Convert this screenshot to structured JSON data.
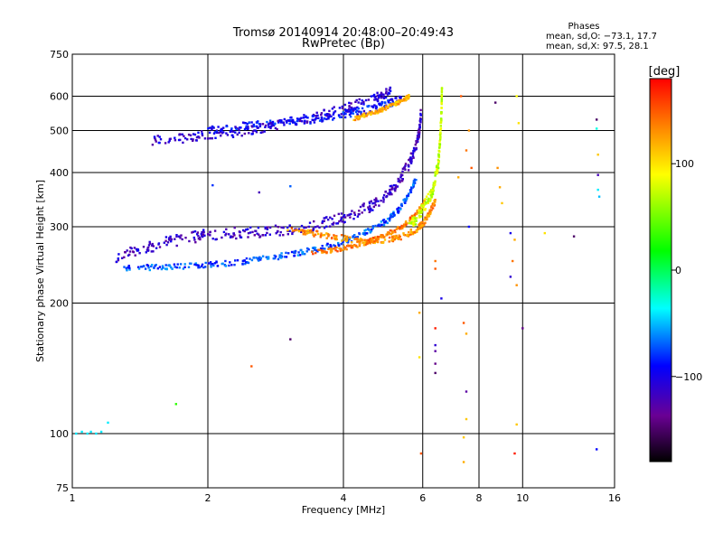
{
  "header": {
    "title": "Tromsø 20140914 20:48:00–20:49:43",
    "subtitle": "RwPretec (Bp)"
  },
  "stats": {
    "heading": "Phases",
    "line_o": "mean, sd,O: −73.1, 17.7",
    "line_x": "mean, sd,X:  97.5, 28.1"
  },
  "colorbar": {
    "unit": "[deg]",
    "range": [
      -180,
      180
    ],
    "ticks": [
      {
        "value": 100,
        "label": "100"
      },
      {
        "value": 0,
        "label": "0"
      },
      {
        "value": -100,
        "label": "−100"
      }
    ]
  },
  "chart_data": {
    "type": "scatter",
    "xlabel": "Frequency [MHz]",
    "ylabel": "Stationary phase Virtual Height [km]",
    "xscale": "log",
    "yscale": "log",
    "xlim": [
      1,
      16
    ],
    "ylim": [
      75,
      750
    ],
    "xticks": [
      {
        "value": 1,
        "label": "1"
      },
      {
        "value": 2,
        "label": "2"
      },
      {
        "value": 4,
        "label": "4"
      },
      {
        "value": 6,
        "label": "6"
      },
      {
        "value": 8,
        "label": "8"
      },
      {
        "value": 10,
        "label": "10"
      },
      {
        "value": 16,
        "label": "16"
      }
    ],
    "yticks": [
      {
        "value": 75,
        "label": "75"
      },
      {
        "value": 100,
        "label": "100"
      },
      {
        "value": 200,
        "label": "200"
      },
      {
        "value": 300,
        "label": "300"
      },
      {
        "value": 400,
        "label": "400"
      },
      {
        "value": 500,
        "label": "500"
      },
      {
        "value": 600,
        "label": "600"
      },
      {
        "value": 750,
        "label": "750"
      }
    ],
    "grid": true,
    "color_dimension": "phase [deg]",
    "traces": [
      {
        "f": [
          1.5,
          1.75,
          2.0,
          2.3,
          2.6,
          3.0,
          3.5,
          4.0,
          4.4,
          4.8,
          5.1
        ],
        "h": [
          475,
          480,
          488,
          495,
          505,
          520,
          540,
          560,
          580,
          600,
          615
        ],
        "phase": -110,
        "spread": 0.025
      },
      {
        "f": [
          2.0,
          2.3,
          2.6,
          3.0,
          3.4,
          3.8,
          4.2,
          4.6,
          5.0,
          5.4
        ],
        "h": [
          500,
          510,
          518,
          525,
          530,
          540,
          550,
          560,
          575,
          590
        ],
        "phase": -90,
        "spread": 0.02
      },
      {
        "f": [
          4.2,
          4.5,
          4.8,
          5.1,
          5.4,
          5.6
        ],
        "h": [
          530,
          545,
          555,
          570,
          585,
          600
        ],
        "phase": 120,
        "spread": 0.01
      },
      {
        "f": [
          1.25,
          1.4,
          1.6,
          1.8,
          2.0,
          2.3,
          2.6,
          3.0,
          3.4,
          3.8,
          4.2,
          4.6,
          5.0,
          5.3,
          5.6,
          5.8,
          5.9,
          5.95
        ],
        "h": [
          255,
          265,
          275,
          282,
          288,
          290,
          292,
          295,
          300,
          310,
          320,
          335,
          355,
          380,
          420,
          460,
          500,
          550
        ],
        "phase": -115,
        "spread": 0.03
      },
      {
        "f": [
          1.3,
          1.5,
          1.7,
          2.0,
          2.3,
          2.6,
          3.0,
          3.4,
          3.8,
          4.2,
          4.6,
          5.0,
          5.3,
          5.6,
          5.8
        ],
        "h": [
          240,
          242,
          243,
          245,
          248,
          252,
          258,
          265,
          272,
          282,
          295,
          310,
          328,
          355,
          390
        ],
        "phase": -75,
        "spread": 0.015
      },
      {
        "f": [
          3.0,
          3.4,
          3.8,
          4.2,
          4.6,
          5.0,
          5.4,
          5.8,
          6.0,
          6.2,
          6.4
        ],
        "h": [
          295,
          290,
          285,
          280,
          278,
          280,
          285,
          295,
          305,
          320,
          345
        ],
        "phase": 130,
        "spread": 0.015
      },
      {
        "f": [
          3.4,
          3.8,
          4.2,
          4.6,
          5.0,
          5.4,
          5.8,
          6.1
        ],
        "h": [
          262,
          265,
          270,
          278,
          288,
          300,
          320,
          345
        ],
        "phase": 140,
        "spread": 0.012
      },
      {
        "f": [
          5.6,
          5.9,
          6.1,
          6.3,
          6.4,
          6.5,
          6.55,
          6.6,
          6.62
        ],
        "h": [
          300,
          320,
          340,
          360,
          390,
          420,
          470,
          540,
          620
        ],
        "phase": 75,
        "spread": 0.03
      }
    ],
    "isolated_points": [
      {
        "f": 1.02,
        "h": 100,
        "phase": -40
      },
      {
        "f": 1.05,
        "h": 101,
        "phase": -40
      },
      {
        "f": 1.08,
        "h": 100,
        "phase": -40
      },
      {
        "f": 1.1,
        "h": 101,
        "phase": -40
      },
      {
        "f": 1.13,
        "h": 100,
        "phase": -40
      },
      {
        "f": 1.16,
        "h": 101,
        "phase": -40
      },
      {
        "f": 1.2,
        "h": 106,
        "phase": -40
      },
      {
        "f": 1.7,
        "h": 117,
        "phase": 30
      },
      {
        "f": 2.5,
        "h": 143,
        "phase": 150
      },
      {
        "f": 3.05,
        "h": 165,
        "phase": -150
      },
      {
        "f": 2.05,
        "h": 374,
        "phase": -80
      },
      {
        "f": 2.6,
        "h": 360,
        "phase": -120
      },
      {
        "f": 3.05,
        "h": 372,
        "phase": -70
      },
      {
        "f": 5.9,
        "h": 190,
        "phase": 120
      },
      {
        "f": 5.9,
        "h": 150,
        "phase": 100
      },
      {
        "f": 5.95,
        "h": 90,
        "phase": 150
      },
      {
        "f": 6.4,
        "h": 175,
        "phase": 170
      },
      {
        "f": 6.4,
        "h": 160,
        "phase": -110
      },
      {
        "f": 6.4,
        "h": 155,
        "phase": -130
      },
      {
        "f": 6.4,
        "h": 145,
        "phase": -140
      },
      {
        "f": 6.4,
        "h": 138,
        "phase": -150
      },
      {
        "f": 6.6,
        "h": 205,
        "phase": -100
      },
      {
        "f": 6.4,
        "h": 250,
        "phase": 140
      },
      {
        "f": 6.4,
        "h": 240,
        "phase": 150
      },
      {
        "f": 7.4,
        "h": 180,
        "phase": 150
      },
      {
        "f": 7.5,
        "h": 170,
        "phase": 120
      },
      {
        "f": 7.5,
        "h": 125,
        "phase": -130
      },
      {
        "f": 7.5,
        "h": 108,
        "phase": 110
      },
      {
        "f": 7.4,
        "h": 98,
        "phase": 110
      },
      {
        "f": 7.4,
        "h": 86,
        "phase": 120
      },
      {
        "f": 7.6,
        "h": 300,
        "phase": -90
      },
      {
        "f": 7.2,
        "h": 390,
        "phase": 120
      },
      {
        "f": 7.3,
        "h": 600,
        "phase": 150
      },
      {
        "f": 7.6,
        "h": 500,
        "phase": 130
      },
      {
        "f": 7.5,
        "h": 450,
        "phase": 140
      },
      {
        "f": 7.7,
        "h": 410,
        "phase": 150
      },
      {
        "f": 8.7,
        "h": 580,
        "phase": -150
      },
      {
        "f": 8.8,
        "h": 410,
        "phase": 130
      },
      {
        "f": 8.9,
        "h": 370,
        "phase": 120
      },
      {
        "f": 9.0,
        "h": 340,
        "phase": 110
      },
      {
        "f": 9.4,
        "h": 290,
        "phase": -100
      },
      {
        "f": 9.4,
        "h": 230,
        "phase": -110
      },
      {
        "f": 9.5,
        "h": 250,
        "phase": 140
      },
      {
        "f": 9.6,
        "h": 280,
        "phase": 120
      },
      {
        "f": 9.7,
        "h": 220,
        "phase": 130
      },
      {
        "f": 9.7,
        "h": 105,
        "phase": 110
      },
      {
        "f": 9.6,
        "h": 90,
        "phase": 170
      },
      {
        "f": 9.8,
        "h": 520,
        "phase": 100
      },
      {
        "f": 9.7,
        "h": 600,
        "phase": 90
      },
      {
        "f": 10.0,
        "h": 175,
        "phase": -140
      },
      {
        "f": 11.2,
        "h": 290,
        "phase": 100
      },
      {
        "f": 13.0,
        "h": 285,
        "phase": -150
      },
      {
        "f": 14.6,
        "h": 530,
        "phase": -150
      },
      {
        "f": 14.6,
        "h": 505,
        "phase": -30
      },
      {
        "f": 14.7,
        "h": 440,
        "phase": 110
      },
      {
        "f": 14.7,
        "h": 395,
        "phase": -120
      },
      {
        "f": 14.7,
        "h": 365,
        "phase": -40
      },
      {
        "f": 14.8,
        "h": 352,
        "phase": -50
      },
      {
        "f": 14.6,
        "h": 92,
        "phase": -90
      }
    ]
  }
}
